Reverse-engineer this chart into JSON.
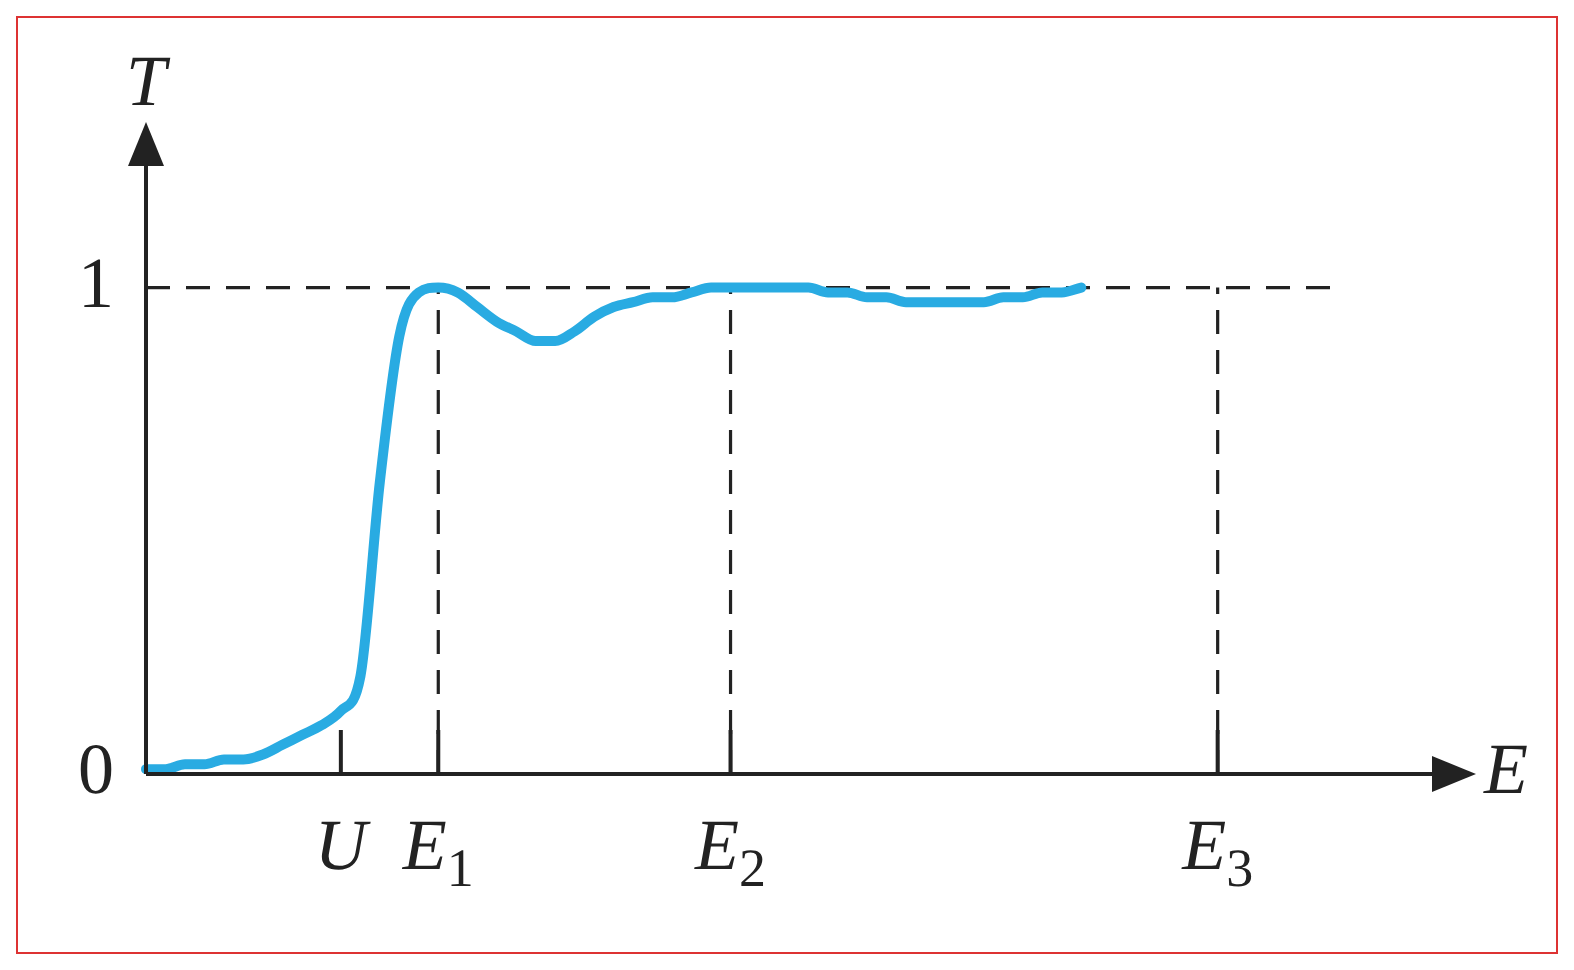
{
  "chart_data": {
    "type": "line",
    "xlabel": "E",
    "ylabel": "T",
    "categories": [
      null,
      null,
      null,
      null,
      null,
      null,
      null,
      null,
      null,
      null,
      "U",
      null,
      null,
      null,
      null,
      "E$_{1}$",
      null,
      null,
      null,
      null,
      null,
      null,
      null,
      null,
      null,
      null,
      null,
      null,
      null,
      null,
      "E$_{2}$",
      null,
      null,
      null,
      null,
      null,
      null,
      null,
      null,
      null,
      null,
      null,
      null,
      null,
      null,
      null,
      null,
      null,
      null,
      null,
      null,
      null,
      null,
      null,
      null,
      "E$_{3}$",
      null,
      null,
      null,
      null,
      null,
      null,
      null,
      null,
      null,
      null,
      null
    ],
    "series": [
      {
        "color": "#29abe2",
        "values": [
          0.01,
          0.01,
          0.02,
          0.02,
          0.03,
          0.03,
          0.04,
          0.06,
          0.08,
          0.1,
          0.13,
          0.2,
          0.6,
          0.9,
          0.99,
          1.0,
          0.99,
          0.96,
          0.93,
          0.91,
          0.89,
          0.89,
          0.91,
          0.94,
          0.96,
          0.97,
          0.98,
          0.98,
          0.99,
          1.0,
          1.0,
          1.0,
          1.0,
          1.0,
          1.0,
          0.99,
          0.99,
          0.98,
          0.98,
          0.97,
          0.97,
          0.97,
          0.97,
          0.97,
          0.98,
          0.98,
          0.99,
          0.99,
          1.0,
          null,
          null,
          null,
          null,
          null,
          null,
          null,
          null,
          null,
          null,
          null,
          null,
          null,
          null,
          null,
          null,
          null,
          null
        ]
      }
    ],
    "ylim": [
      0,
      1.25
    ],
    "yticks": [
      {
        "value": 0,
        "label": "0"
      },
      {
        "value": 1,
        "label": "1"
      }
    ],
    "ref_lines": [
      {
        "axis": "y",
        "value": 1,
        "line_style": "dashed"
      },
      {
        "axis": "x",
        "value": "E$_{1}$",
        "line_style": "dashed"
      },
      {
        "axis": "x",
        "value": "E$_{2}$",
        "line_style": "dashed"
      },
      {
        "axis": "x",
        "value": "E$_{3}$",
        "line_style": "dashed"
      }
    ],
    "grid": false,
    "legend": false,
    "marker": "none",
    "line_style": "solid"
  }
}
